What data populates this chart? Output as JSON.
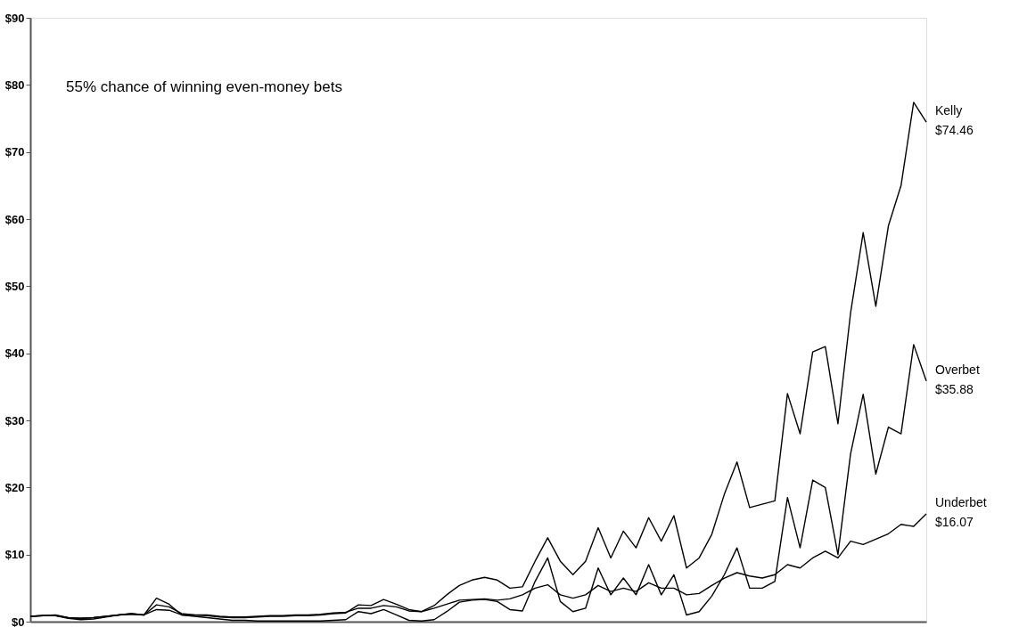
{
  "chart_data": {
    "type": "line",
    "annotations": [
      "55% chance of winning even-money bets"
    ],
    "categories": [
      null,
      null,
      null,
      null,
      null,
      null,
      null,
      null,
      null,
      null,
      null,
      null,
      null,
      null,
      null,
      null,
      null,
      null,
      null,
      null,
      null,
      null,
      null,
      null,
      null,
      null,
      null,
      null,
      null,
      null,
      null,
      null,
      null,
      null,
      null,
      null,
      null,
      null,
      null,
      null,
      null,
      null,
      null,
      null,
      null,
      null,
      null,
      null,
      null,
      null,
      null,
      null,
      null,
      null,
      null,
      null,
      null,
      null,
      null,
      null,
      null,
      null,
      null,
      null,
      null,
      null,
      null,
      null,
      null,
      null,
      null,
      null
    ],
    "ylim": [
      0,
      90
    ],
    "yticks": [
      {
        "value": 0,
        "label": "$0"
      },
      {
        "value": 10,
        "label": "$10"
      },
      {
        "value": 20,
        "label": "$20"
      },
      {
        "value": 30,
        "label": "$30"
      },
      {
        "value": 40,
        "label": "$40"
      },
      {
        "value": 50,
        "label": "$50"
      },
      {
        "value": 60,
        "label": "$60"
      },
      {
        "value": 70,
        "label": "$70"
      },
      {
        "value": 80,
        "label": "$80"
      },
      {
        "value": 90,
        "label": "$90"
      }
    ],
    "series": [
      {
        "name": "Kelly",
        "color": "#000000",
        "values": [
          0.8,
          0.9,
          1.0,
          0.6,
          0.5,
          0.6,
          0.8,
          1.0,
          1.2,
          1.0,
          2.5,
          2.2,
          1.2,
          1.0,
          0.9,
          0.7,
          0.6,
          0.6,
          0.7,
          0.8,
          0.8,
          0.9,
          0.9,
          1.0,
          1.2,
          1.3,
          2.5,
          2.4,
          3.3,
          2.6,
          1.8,
          1.5,
          2.4,
          4.0,
          5.4,
          6.2,
          6.6,
          6.2,
          5.0,
          5.2,
          9.0,
          12.5,
          9.0,
          7.0,
          9.0,
          14.0,
          9.5,
          13.5,
          11.0,
          15.5,
          12.0,
          15.8,
          8.0,
          9.5,
          13.0,
          19.0,
          23.8,
          17.0,
          17.5,
          18.0,
          34.0,
          28.0,
          40.2,
          41.0,
          29.5,
          46.0,
          58.0,
          47.0,
          59.0,
          65.0,
          77.4,
          74.46
        ],
        "value_labels": [
          null,
          null,
          null,
          null,
          null,
          null,
          null,
          null,
          null,
          null,
          null,
          null,
          null,
          null,
          null,
          null,
          null,
          null,
          null,
          null,
          null,
          null,
          null,
          null,
          null,
          null,
          null,
          null,
          null,
          null,
          null,
          null,
          null,
          null,
          null,
          null,
          null,
          null,
          null,
          null,
          null,
          null,
          null,
          null,
          null,
          null,
          null,
          null,
          null,
          null,
          null,
          null,
          null,
          null,
          null,
          null,
          null,
          null,
          null,
          null,
          null,
          null,
          null,
          null,
          null,
          null,
          null,
          null,
          null,
          null,
          null,
          "$74.46"
        ]
      },
      {
        "name": "Overbet",
        "color": "#000000",
        "values": [
          0.8,
          0.9,
          0.9,
          0.5,
          0.3,
          0.4,
          0.7,
          1.0,
          1.2,
          1.0,
          3.5,
          2.6,
          1.0,
          0.8,
          0.6,
          0.4,
          0.2,
          0.2,
          0.1,
          0.1,
          0.1,
          0.1,
          0.1,
          0.1,
          0.2,
          0.3,
          1.5,
          1.2,
          1.8,
          1.0,
          0.2,
          0.1,
          0.3,
          1.5,
          2.9,
          3.2,
          3.3,
          3.0,
          1.8,
          1.6,
          6.0,
          9.5,
          3.0,
          1.5,
          2.0,
          8.0,
          4.0,
          6.5,
          4.0,
          8.5,
          4.0,
          7.0,
          1.0,
          1.5,
          3.8,
          7.0,
          11.0,
          5.0,
          5.0,
          6.0,
          18.5,
          11.0,
          21.1,
          20.0,
          10.0,
          25.0,
          33.9,
          22.0,
          29.0,
          28.0,
          41.3,
          35.88
        ],
        "value_labels": [
          null,
          null,
          null,
          null,
          null,
          null,
          null,
          null,
          null,
          null,
          null,
          null,
          null,
          null,
          null,
          null,
          null,
          null,
          null,
          null,
          null,
          null,
          null,
          null,
          null,
          null,
          null,
          null,
          null,
          null,
          null,
          null,
          null,
          null,
          null,
          null,
          null,
          null,
          null,
          null,
          null,
          null,
          null,
          null,
          null,
          null,
          null,
          null,
          null,
          null,
          null,
          null,
          null,
          null,
          null,
          null,
          null,
          null,
          null,
          null,
          null,
          null,
          null,
          null,
          null,
          null,
          null,
          null,
          null,
          null,
          null,
          "$35.88"
        ]
      },
      {
        "name": "Underbet",
        "color": "#000000",
        "values": [
          0.8,
          0.9,
          0.9,
          0.6,
          0.5,
          0.6,
          0.8,
          1.0,
          1.1,
          1.0,
          1.8,
          1.7,
          1.0,
          1.0,
          1.0,
          0.8,
          0.7,
          0.7,
          0.8,
          0.9,
          0.9,
          1.0,
          1.0,
          1.1,
          1.3,
          1.4,
          2.0,
          2.0,
          2.4,
          2.2,
          1.6,
          1.5,
          2.0,
          2.6,
          3.2,
          3.3,
          3.4,
          3.2,
          3.4,
          4.0,
          5.0,
          5.5,
          4.0,
          3.5,
          4.0,
          5.4,
          4.5,
          5.0,
          4.5,
          5.8,
          5.0,
          5.0,
          4.0,
          4.2,
          5.4,
          6.5,
          7.3,
          6.8,
          6.5,
          7.0,
          8.5,
          8.0,
          9.5,
          10.5,
          9.5,
          12.0,
          11.5,
          12.3,
          13.1,
          14.5,
          14.2,
          16.07
        ],
        "value_labels": [
          null,
          null,
          null,
          null,
          null,
          null,
          null,
          null,
          null,
          null,
          null,
          null,
          null,
          null,
          null,
          null,
          null,
          null,
          null,
          null,
          null,
          null,
          null,
          null,
          null,
          null,
          null,
          null,
          null,
          null,
          null,
          null,
          null,
          null,
          null,
          null,
          null,
          null,
          null,
          null,
          null,
          null,
          null,
          null,
          null,
          null,
          null,
          null,
          null,
          null,
          null,
          null,
          null,
          null,
          null,
          null,
          null,
          null,
          null,
          null,
          null,
          null,
          null,
          null,
          null,
          null,
          null,
          null,
          null,
          null,
          null,
          "$16.07"
        ]
      }
    ]
  }
}
